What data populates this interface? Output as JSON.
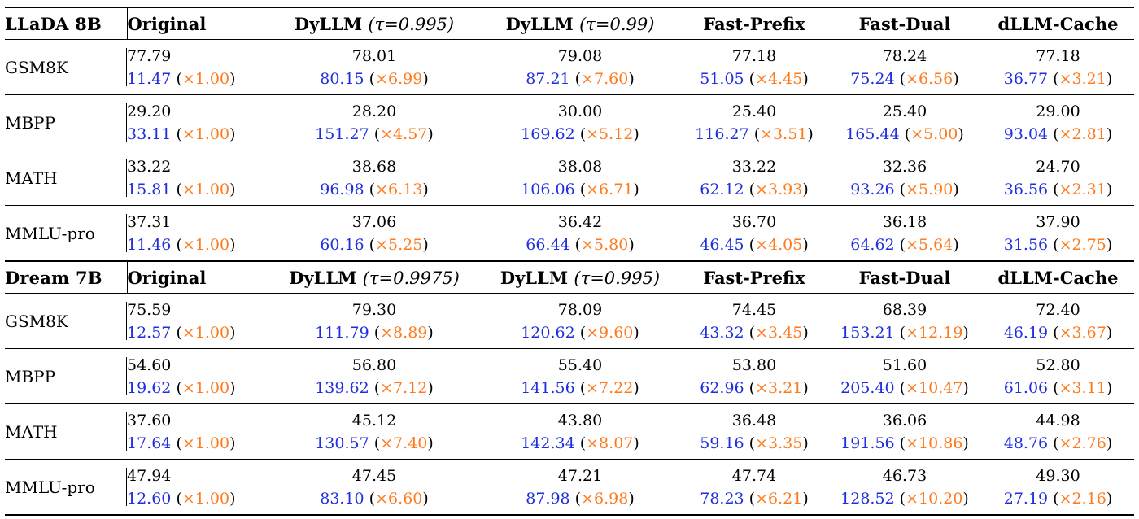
{
  "colors": {
    "throughput": "#1f2fe0",
    "speedup": "#ff7a1c"
  },
  "sections": [
    {
      "model": "LLaDA 8B",
      "columns": [
        "Original",
        "DyLLM",
        "(τ=0.995)",
        "DyLLM",
        "(τ=0.99)",
        "Fast-Prefix",
        "Fast-Dual",
        "dLLM-Cache"
      ],
      "rows": [
        {
          "dataset": "GSM8K",
          "cells": [
            {
              "acc": "77.79",
              "tput": "11.47",
              "ratio": "×1.00"
            },
            {
              "acc": "78.01",
              "tput": "80.15",
              "ratio": "×6.99"
            },
            {
              "acc": "79.08",
              "tput": "87.21",
              "ratio": "×7.60"
            },
            {
              "acc": "77.18",
              "tput": "51.05",
              "ratio": "×4.45"
            },
            {
              "acc": "78.24",
              "tput": "75.24",
              "ratio": "×6.56"
            },
            {
              "acc": "77.18",
              "tput": "36.77",
              "ratio": "×3.21"
            }
          ]
        },
        {
          "dataset": "MBPP",
          "cells": [
            {
              "acc": "29.20",
              "tput": "33.11",
              "ratio": "×1.00"
            },
            {
              "acc": "28.20",
              "tput": "151.27",
              "ratio": "×4.57"
            },
            {
              "acc": "30.00",
              "tput": "169.62",
              "ratio": "×5.12"
            },
            {
              "acc": "25.40",
              "tput": "116.27",
              "ratio": "×3.51"
            },
            {
              "acc": "25.40",
              "tput": "165.44",
              "ratio": "×5.00"
            },
            {
              "acc": "29.00",
              "tput": "93.04",
              "ratio": "×2.81"
            }
          ]
        },
        {
          "dataset": "MATH",
          "cells": [
            {
              "acc": "33.22",
              "tput": "15.81",
              "ratio": "×1.00"
            },
            {
              "acc": "38.68",
              "tput": "96.98",
              "ratio": "×6.13"
            },
            {
              "acc": "38.08",
              "tput": "106.06",
              "ratio": "×6.71"
            },
            {
              "acc": "33.22",
              "tput": "62.12",
              "ratio": "×3.93"
            },
            {
              "acc": "32.36",
              "tput": "93.26",
              "ratio": "×5.90"
            },
            {
              "acc": "24.70",
              "tput": "36.56",
              "ratio": "×2.31"
            }
          ]
        },
        {
          "dataset": "MMLU-pro",
          "cells": [
            {
              "acc": "37.31",
              "tput": "11.46",
              "ratio": "×1.00"
            },
            {
              "acc": "37.06",
              "tput": "60.16",
              "ratio": "×5.25"
            },
            {
              "acc": "36.42",
              "tput": "66.44",
              "ratio": "×5.80"
            },
            {
              "acc": "36.70",
              "tput": "46.45",
              "ratio": "×4.05"
            },
            {
              "acc": "36.18",
              "tput": "64.62",
              "ratio": "×5.64"
            },
            {
              "acc": "37.90",
              "tput": "31.56",
              "ratio": "×2.75"
            }
          ]
        }
      ]
    },
    {
      "model": "Dream 7B",
      "columns": [
        "Original",
        "DyLLM",
        "(τ=0.9975)",
        "DyLLM",
        "(τ=0.995)",
        "Fast-Prefix",
        "Fast-Dual",
        "dLLM-Cache"
      ],
      "rows": [
        {
          "dataset": "GSM8K",
          "cells": [
            {
              "acc": "75.59",
              "tput": "12.57",
              "ratio": "×1.00"
            },
            {
              "acc": "79.30",
              "tput": "111.79",
              "ratio": "×8.89"
            },
            {
              "acc": "78.09",
              "tput": "120.62",
              "ratio": "×9.60"
            },
            {
              "acc": "74.45",
              "tput": "43.32",
              "ratio": "×3.45"
            },
            {
              "acc": "68.39",
              "tput": "153.21",
              "ratio": "×12.19"
            },
            {
              "acc": "72.40",
              "tput": "46.19",
              "ratio": "×3.67"
            }
          ]
        },
        {
          "dataset": "MBPP",
          "cells": [
            {
              "acc": "54.60",
              "tput": "19.62",
              "ratio": "×1.00"
            },
            {
              "acc": "56.80",
              "tput": "139.62",
              "ratio": "×7.12"
            },
            {
              "acc": "55.40",
              "tput": "141.56",
              "ratio": "×7.22"
            },
            {
              "acc": "53.80",
              "tput": "62.96",
              "ratio": "×3.21"
            },
            {
              "acc": "51.60",
              "tput": "205.40",
              "ratio": "×10.47"
            },
            {
              "acc": "52.80",
              "tput": "61.06",
              "ratio": "×3.11"
            }
          ]
        },
        {
          "dataset": "MATH",
          "cells": [
            {
              "acc": "37.60",
              "tput": "17.64",
              "ratio": "×1.00"
            },
            {
              "acc": "45.12",
              "tput": "130.57",
              "ratio": "×7.40"
            },
            {
              "acc": "43.80",
              "tput": "142.34",
              "ratio": "×8.07"
            },
            {
              "acc": "36.48",
              "tput": "59.16",
              "ratio": "×3.35"
            },
            {
              "acc": "36.06",
              "tput": "191.56",
              "ratio": "×10.86"
            },
            {
              "acc": "44.98",
              "tput": "48.76",
              "ratio": "×2.76"
            }
          ]
        },
        {
          "dataset": "MMLU-pro",
          "cells": [
            {
              "acc": "47.94",
              "tput": "12.60",
              "ratio": "×1.00"
            },
            {
              "acc": "47.45",
              "tput": "83.10",
              "ratio": "×6.60"
            },
            {
              "acc": "47.21",
              "tput": "87.98",
              "ratio": "×6.98"
            },
            {
              "acc": "47.74",
              "tput": "78.23",
              "ratio": "×6.21"
            },
            {
              "acc": "46.73",
              "tput": "128.52",
              "ratio": "×10.20"
            },
            {
              "acc": "49.30",
              "tput": "27.19",
              "ratio": "×2.16"
            }
          ]
        }
      ]
    }
  ]
}
